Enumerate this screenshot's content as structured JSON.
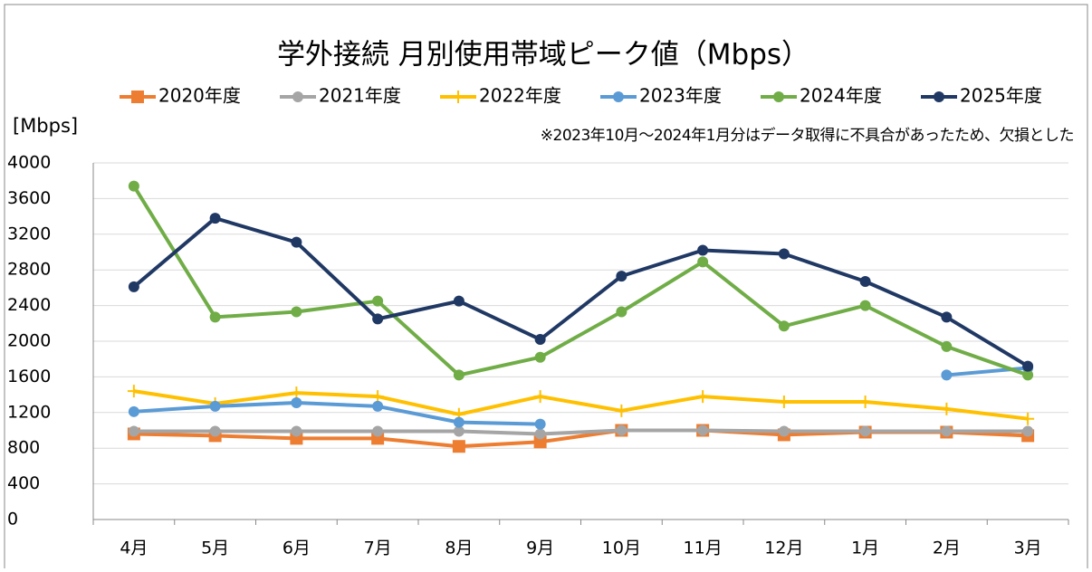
{
  "chart_data": {
    "type": "line",
    "title": "学外接続 月別使用帯域ピーク値（Mbps）",
    "y_label": "[Mbps]",
    "annotation": "※2023年10月～2024年1月分はデータ取得に不具合があったため、欠損とした",
    "categories": [
      "4月",
      "5月",
      "6月",
      "7月",
      "8月",
      "9月",
      "10月",
      "11月",
      "12月",
      "1月",
      "2月",
      "3月"
    ],
    "series": [
      {
        "name": "2020年度",
        "color": "#ed7d31",
        "marker": "square",
        "values": [
          960,
          940,
          910,
          910,
          820,
          870,
          1000,
          1000,
          950,
          980,
          980,
          940
        ]
      },
      {
        "name": "2021年度",
        "color": "#a5a5a5",
        "marker": "circle",
        "values": [
          990,
          990,
          990,
          990,
          990,
          960,
          1000,
          1000,
          990,
          990,
          990,
          990
        ]
      },
      {
        "name": "2022年度",
        "color": "#ffc000",
        "marker": "plus",
        "values": [
          1440,
          1300,
          1420,
          1380,
          1180,
          1380,
          1220,
          1380,
          1320,
          1320,
          1240,
          1130
        ]
      },
      {
        "name": "2023年度",
        "color": "#5b9bd5",
        "marker": "circle",
        "values": [
          1210,
          1270,
          1310,
          1270,
          1090,
          1070,
          null,
          null,
          null,
          null,
          1620,
          1700
        ]
      },
      {
        "name": "2024年度",
        "color": "#70ad47",
        "marker": "circle",
        "values": [
          3740,
          2270,
          2330,
          2450,
          1620,
          1820,
          2330,
          2890,
          2170,
          2400,
          1940,
          1620
        ]
      },
      {
        "name": "2025年度",
        "color": "#203864",
        "marker": "circle",
        "values": [
          2610,
          3380,
          3110,
          2250,
          2450,
          2020,
          2730,
          3020,
          2980,
          2670,
          2270,
          1720
        ]
      }
    ],
    "ylim": [
      0,
      4000
    ],
    "yticks": [
      0,
      400,
      800,
      1200,
      1600,
      2000,
      2400,
      2800,
      3200,
      3600,
      4000
    ],
    "grid": true
  }
}
